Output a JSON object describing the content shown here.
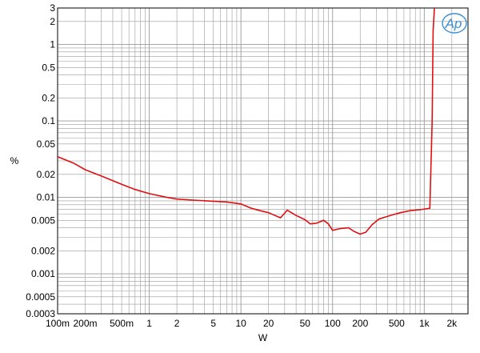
{
  "chart_data": {
    "type": "line",
    "xlabel": "W",
    "ylabel": "%",
    "x_scale": "log",
    "y_scale": "log",
    "xlim": [
      0.1,
      3000
    ],
    "ylim": [
      0.0003,
      3
    ],
    "grid": true,
    "logo_text": "Ap",
    "x_ticks": [
      {
        "value": 0.1,
        "label": "100m"
      },
      {
        "value": 0.2,
        "label": "200m"
      },
      {
        "value": 0.5,
        "label": "500m"
      },
      {
        "value": 1,
        "label": "1"
      },
      {
        "value": 2,
        "label": "2"
      },
      {
        "value": 5,
        "label": "5"
      },
      {
        "value": 10,
        "label": "10"
      },
      {
        "value": 20,
        "label": "20"
      },
      {
        "value": 50,
        "label": "50"
      },
      {
        "value": 100,
        "label": "100"
      },
      {
        "value": 200,
        "label": "200"
      },
      {
        "value": 500,
        "label": "500"
      },
      {
        "value": 1000,
        "label": "1k"
      },
      {
        "value": 2000,
        "label": "2k"
      }
    ],
    "y_ticks": [
      {
        "value": 3,
        "label": "3"
      },
      {
        "value": 2,
        "label": "2"
      },
      {
        "value": 1,
        "label": "1"
      },
      {
        "value": 0.5,
        "label": "0.5"
      },
      {
        "value": 0.2,
        "label": "0.2"
      },
      {
        "value": 0.1,
        "label": "0.1"
      },
      {
        "value": 0.05,
        "label": "0.05"
      },
      {
        "value": 0.02,
        "label": "0.02"
      },
      {
        "value": 0.01,
        "label": "0.01"
      },
      {
        "value": 0.005,
        "label": "0.005"
      },
      {
        "value": 0.002,
        "label": "0.002"
      },
      {
        "value": 0.001,
        "label": "0.001"
      },
      {
        "value": 0.0005,
        "label": "0.0005"
      },
      {
        "value": 0.0003,
        "label": "0.0003"
      }
    ],
    "series": [
      {
        "color": "#e01010",
        "x": [
          0.1,
          0.15,
          0.2,
          0.3,
          0.5,
          0.7,
          1,
          1.5,
          2,
          3,
          5,
          7,
          10,
          13,
          17,
          20,
          27,
          32,
          40,
          50,
          57,
          67,
          80,
          90,
          100,
          120,
          150,
          170,
          200,
          230,
          270,
          320,
          370,
          450,
          550,
          700,
          900,
          1150,
          1220,
          1250,
          1300
        ],
        "y": [
          0.034,
          0.028,
          0.023,
          0.019,
          0.0148,
          0.0127,
          0.0112,
          0.0101,
          0.0095,
          0.0092,
          0.0089,
          0.0087,
          0.0082,
          0.0072,
          0.0066,
          0.0063,
          0.0054,
          0.0068,
          0.0058,
          0.0051,
          0.0045,
          0.0046,
          0.005,
          0.0045,
          0.0037,
          0.0039,
          0.004,
          0.0036,
          0.0033,
          0.0035,
          0.0044,
          0.0052,
          0.0055,
          0.0059,
          0.0063,
          0.0067,
          0.0069,
          0.0072,
          0.1,
          1.5,
          3.5
        ]
      }
    ]
  }
}
